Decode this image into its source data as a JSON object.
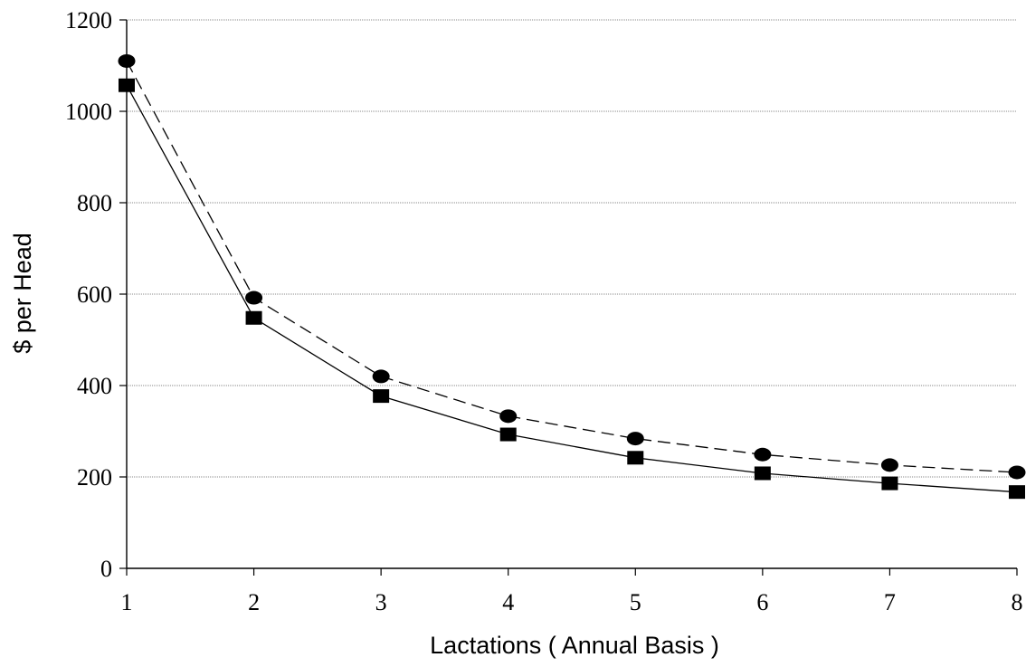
{
  "chart_data": {
    "type": "line",
    "xlabel": "Lactations ( Annual Basis )",
    "ylabel": "$ per Head",
    "categories": [
      "1",
      "2",
      "3",
      "4",
      "5",
      "6",
      "7",
      "8"
    ],
    "ylim": [
      0,
      1200
    ],
    "yticks": [
      "0",
      "200",
      "400",
      "600",
      "800",
      "1000",
      "1200"
    ],
    "grid": "horizontal",
    "legend": "none",
    "series": [
      {
        "marker": "circle",
        "line_style": "dashed",
        "color": "#000000",
        "values": [
          1110,
          592,
          420,
          333,
          284,
          249,
          226,
          210
        ]
      },
      {
        "marker": "square",
        "line_style": "solid",
        "color": "#000000",
        "values": [
          1057,
          548,
          377,
          293,
          242,
          208,
          186,
          167
        ]
      }
    ]
  }
}
